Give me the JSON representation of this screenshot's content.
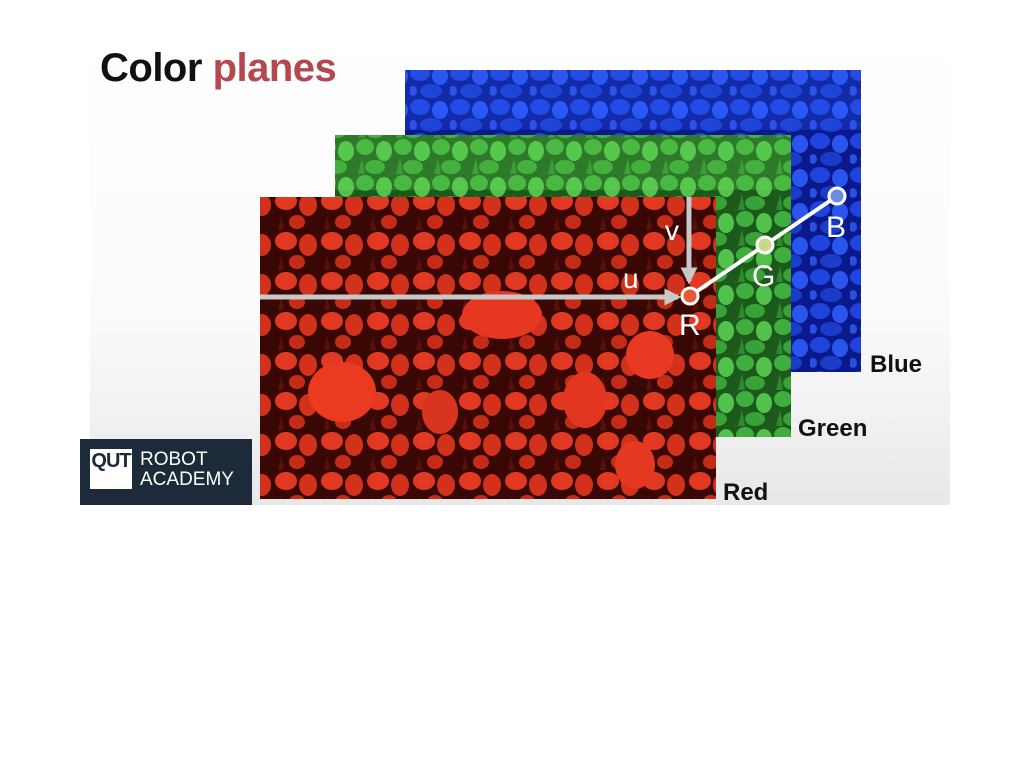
{
  "slide": {
    "title_part1": "Color",
    "title_part2": "planes",
    "title_accent_color": "#b5474f"
  },
  "planes": [
    {
      "name": "Blue",
      "label": "Blue",
      "color": "#1e3fd6"
    },
    {
      "name": "Green",
      "label": "Green",
      "color": "#3aa83a"
    },
    {
      "name": "Red",
      "label": "Red",
      "color": "#e0321c"
    }
  ],
  "axes": {
    "u_label": "u",
    "v_label": "v"
  },
  "pixel_points": [
    {
      "label": "R"
    },
    {
      "label": "G"
    },
    {
      "label": "B"
    }
  ],
  "logo": {
    "mark": "QUT",
    "line1": "ROBOT",
    "line2": "ACADEMY"
  }
}
